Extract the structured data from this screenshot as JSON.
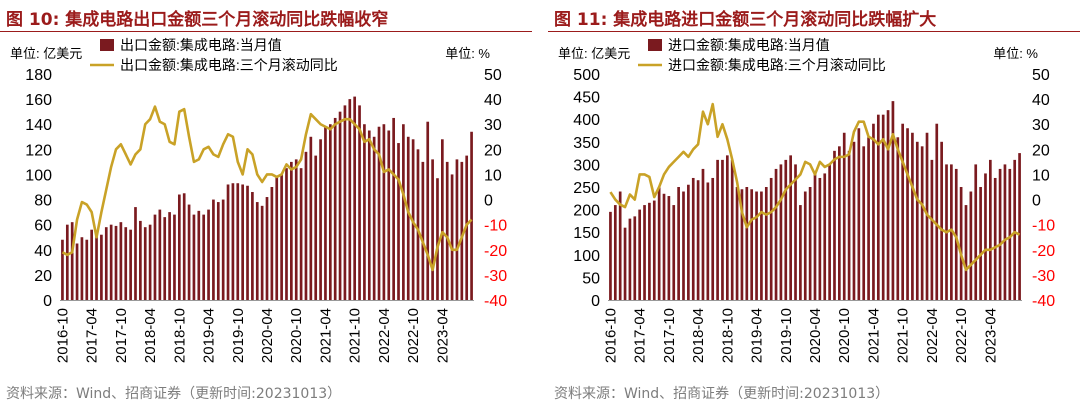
{
  "palette": {
    "bar": "#7a1a1f",
    "line": "#c9a227",
    "title": "#9b1b1b",
    "right_axis": "#ff0000",
    "text": "#000000",
    "source": "#7d7d7d"
  },
  "panels": [
    {
      "title": "图 10:  集成电路出口金额三个月滚动同比跌幅收窄",
      "source": "资料来源：Wind、招商证券（更新时间:20231013）",
      "left_unit": "单位:  亿美元",
      "right_unit": "单位:  %"
    },
    {
      "title": "图 11:  集成电路进口金额三个月滚动同比跌幅扩大",
      "source": "资料来源：Wind、招商证券（更新时间:20231013）",
      "left_unit": "单位:  亿美元",
      "right_unit": "单位:  %"
    }
  ],
  "chart_data": [
    {
      "type": "bar+line",
      "title": "图 10:  集成电路出口金额三个月滚动同比跌幅收窄",
      "x_tick_labels": [
        "2016-10",
        "2017-04",
        "2017-10",
        "2018-04",
        "2018-10",
        "2019-04",
        "2019-10",
        "2020-04",
        "2020-10",
        "2021-04",
        "2021-10",
        "2022-04",
        "2022-10",
        "2023-04"
      ],
      "y_left": {
        "ticks": [
          0,
          20,
          40,
          60,
          80,
          100,
          120,
          140,
          160,
          180
        ],
        "range": [
          0,
          180
        ]
      },
      "y_right": {
        "ticks": [
          -40,
          -30,
          -20,
          -10,
          0,
          10,
          20,
          30,
          40,
          50
        ],
        "range": [
          -40,
          50
        ]
      },
      "series": [
        {
          "name": "出口金额:集成电路:当月值",
          "type": "bar",
          "axis": "left",
          "values": [
            48,
            60,
            62,
            45,
            50,
            48,
            56,
            55,
            52,
            58,
            60,
            59,
            62,
            58,
            56,
            74,
            63,
            58,
            60,
            68,
            72,
            66,
            70,
            68,
            84,
            85,
            76,
            68,
            71,
            68,
            72,
            80,
            78,
            80,
            92,
            93,
            93,
            92,
            91,
            86,
            78,
            75,
            82,
            90,
            98,
            100,
            105,
            110,
            112,
            105,
            118,
            130,
            115,
            128,
            138,
            140,
            145,
            150,
            155,
            160,
            162,
            155,
            140,
            135,
            130,
            138,
            140,
            135,
            145,
            125,
            140,
            130,
            128,
            120,
            110,
            142,
            112,
            97,
            128,
            110,
            100,
            112,
            110,
            115,
            134
          ]
        },
        {
          "name": "出口金额:集成电路:三个月滚动同比",
          "type": "line",
          "axis": "right",
          "values": [
            -21,
            -22,
            -21,
            -8,
            -1,
            -2,
            -5,
            -15,
            -5,
            4,
            13,
            20,
            22,
            18,
            14,
            18,
            20,
            30,
            32,
            37,
            31,
            30,
            23,
            22,
            35,
            36,
            25,
            15,
            16,
            20,
            21,
            18,
            17,
            22,
            26,
            25,
            15,
            10,
            20,
            18,
            10,
            7,
            10,
            10,
            9,
            10,
            14,
            12,
            13,
            16,
            26,
            34,
            32,
            30,
            29,
            28,
            30,
            31,
            32,
            32,
            30,
            28,
            23,
            24,
            20,
            18,
            11,
            12,
            10,
            8,
            2,
            -5,
            -9,
            -12,
            -17,
            -22,
            -28,
            -19,
            -13,
            -15,
            -20,
            -20,
            -15,
            -10,
            -8
          ]
        }
      ]
    },
    {
      "type": "bar+line",
      "title": "图 11:  集成电路进口金额三个月滚动同比跌幅扩大",
      "x_tick_labels": [
        "2016-10",
        "2017-04",
        "2017-10",
        "2018-04",
        "2018-10",
        "2019-04",
        "2019-10",
        "2020-04",
        "2020-10",
        "2021-04",
        "2021-10",
        "2022-04",
        "2022-10",
        "2023-04"
      ],
      "y_left": {
        "ticks": [
          0,
          50,
          100,
          150,
          200,
          250,
          300,
          350,
          400,
          450,
          500
        ],
        "range": [
          0,
          500
        ]
      },
      "y_right": {
        "ticks": [
          -40,
          -30,
          -20,
          -10,
          0,
          10,
          20,
          30,
          40,
          50
        ],
        "range": [
          -40,
          50
        ]
      },
      "series": [
        {
          "name": "进口金额:集成电路:当月值",
          "type": "bar",
          "axis": "left",
          "values": [
            195,
            210,
            240,
            160,
            180,
            185,
            200,
            210,
            215,
            220,
            250,
            235,
            230,
            210,
            250,
            240,
            255,
            270,
            265,
            290,
            260,
            270,
            310,
            310,
            320,
            310,
            250,
            245,
            250,
            245,
            240,
            240,
            250,
            270,
            290,
            300,
            310,
            320,
            300,
            210,
            240,
            250,
            280,
            270,
            280,
            300,
            330,
            340,
            370,
            330,
            350,
            380,
            340,
            360,
            390,
            410,
            410,
            420,
            440,
            360,
            390,
            380,
            370,
            350,
            340,
            370,
            310,
            390,
            350,
            300,
            300,
            290,
            250,
            210,
            240,
            300,
            250,
            280,
            310,
            270,
            290,
            300,
            290,
            310,
            325
          ]
        },
        {
          "name": "进口金额:集成电路:三个月滚动同比",
          "type": "line",
          "axis": "right",
          "values": [
            3,
            0,
            -2,
            -3,
            2,
            0,
            10,
            10,
            9,
            1,
            5,
            10,
            13,
            15,
            17,
            19,
            17,
            20,
            22,
            35,
            30,
            38,
            25,
            30,
            24,
            16,
            7,
            -5,
            -11,
            -8,
            -7,
            -5,
            -6,
            -5,
            -3,
            0,
            4,
            6,
            8,
            10,
            15,
            14,
            10,
            15,
            13,
            14,
            16,
            17,
            17,
            18,
            27,
            31,
            31,
            25,
            24,
            22,
            24,
            20,
            26,
            20,
            15,
            10,
            5,
            0,
            -2,
            -6,
            -8,
            -10,
            -12,
            -13,
            -12,
            -15,
            -22,
            -28,
            -26,
            -24,
            -22,
            -20,
            -20,
            -19,
            -18,
            -16,
            -15,
            -13,
            -14
          ]
        }
      ]
    }
  ]
}
